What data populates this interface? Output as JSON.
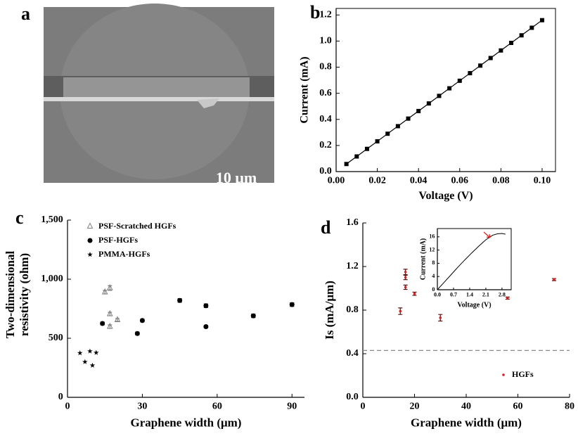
{
  "image_panel": {
    "panel_label": "a",
    "scale_bar": "10 μm"
  },
  "chart_data": [
    {
      "type": "line",
      "panel_label": "b",
      "xlabel": "Voltage (V)",
      "ylabel": "Current (mA)",
      "x": [
        0.005,
        0.01,
        0.015,
        0.02,
        0.025,
        0.03,
        0.035,
        0.04,
        0.045,
        0.05,
        0.055,
        0.06,
        0.065,
        0.07,
        0.075,
        0.08,
        0.085,
        0.09,
        0.095,
        0.1
      ],
      "series": [
        {
          "color": "#000000",
          "marker": "square",
          "values": [
            0.058,
            0.116,
            0.174,
            0.232,
            0.29,
            0.348,
            0.406,
            0.464,
            0.522,
            0.58,
            0.638,
            0.696,
            0.754,
            0.812,
            0.87,
            0.928,
            0.986,
            1.044,
            1.102,
            1.16
          ]
        }
      ],
      "xlim": [
        0,
        0.1065
      ],
      "ylim": [
        0,
        1.25
      ],
      "xticks": [
        {
          "value": 0,
          "label": "0.00"
        },
        0.02,
        0.04,
        0.06,
        0.08,
        {
          "value": 0.1,
          "label": "0.10"
        }
      ],
      "yticks": [
        {
          "value": 0,
          "label": "0.0"
        },
        0.2,
        0.4,
        0.6,
        0.8,
        {
          "value": 1,
          "label": "1.0"
        },
        1.2
      ]
    },
    {
      "type": "scatter",
      "panel_label": "c",
      "xlabel": "Graphene width (μm)",
      "ylabel": [
        "Two-dimensional",
        "resistivity (ohm)"
      ],
      "series": [
        {
          "name": "PSF-Scratched HGFs",
          "color": "#808080",
          "marker": "triangle-open",
          "x": [
            15,
            17,
            17,
            17,
            20
          ],
          "values": [
            890,
            925,
            705,
            598,
            655
          ],
          "errors": [
            15,
            20,
            15,
            15,
            12
          ]
        },
        {
          "name": "PSF-HGFs",
          "color": "#000000",
          "marker": "circle",
          "x": [
            14,
            28,
            30,
            45,
            55.5,
            55.5,
            74.5,
            90
          ],
          "values": [
            625,
            540,
            650,
            820,
            775,
            598,
            690,
            785
          ],
          "errors": [
            12,
            12,
            12,
            15,
            15,
            10,
            15,
            15
          ]
        },
        {
          "name": "PMMA-HGFs",
          "color": "#000000",
          "marker": "star",
          "x": [
            5,
            7,
            9,
            10,
            11.5
          ],
          "values": [
            375,
            300,
            390,
            270,
            378
          ]
        }
      ],
      "xlim": [
        0,
        95
      ],
      "ylim": [
        0,
        1500
      ],
      "xticks": [
        0,
        30,
        60,
        90
      ],
      "yticks": [
        0,
        500,
        {
          "value": 1000,
          "label": "1,000"
        },
        {
          "value": 1500,
          "label": "1,500"
        }
      ],
      "legend": "top-left"
    },
    {
      "type": "scatter",
      "panel_label": "d",
      "xlabel": "Graphene width (μm)",
      "ylabel": "Is (mA/μm)",
      "series": [
        {
          "name": "HGFs",
          "color": "#d62020",
          "error_color": "#5a1010",
          "marker": "dot",
          "x": [
            14.5,
            16.5,
            16.5,
            16.5,
            20,
            30,
            56,
            74
          ],
          "values": [
            0.79,
            1.15,
            1.1,
            1.01,
            0.95,
            0.73,
            0.91,
            1.08
          ],
          "errors": [
            0.03,
            0.025,
            0.02,
            0.02,
            0.015,
            0.03,
            0.01,
            0.01
          ]
        }
      ],
      "reference_line": 0.43,
      "xlim": [
        0,
        80
      ],
      "ylim": [
        0,
        1.6
      ],
      "xticks": [
        0,
        20,
        40,
        60,
        80
      ],
      "yticks": [
        {
          "value": 0,
          "label": "0.0"
        },
        0.4,
        0.8,
        1.2,
        1.6
      ],
      "legend": "bottom-right"
    },
    {
      "type": "line",
      "xlabel": "Voltage (V)",
      "ylabel": "Current (mA)",
      "x": [
        0,
        0.3,
        0.6,
        0.9,
        1.2,
        1.5,
        1.8,
        2.1,
        2.4,
        2.6,
        2.8,
        2.95
      ],
      "series": [
        {
          "color": "#000000",
          "values": [
            0,
            2.3,
            4.6,
            6.9,
            9.1,
            11.2,
            13.2,
            15.1,
            16.5,
            16.9,
            17.0,
            16.8
          ]
        }
      ],
      "xlim": [
        0,
        3.2
      ],
      "ylim": [
        0,
        18.5
      ],
      "xticks": [
        {
          "value": 0,
          "label": "0.0"
        },
        0.7,
        1.4,
        2.1,
        2.8
      ],
      "yticks": [
        0,
        4,
        8,
        12,
        16
      ]
    }
  ]
}
